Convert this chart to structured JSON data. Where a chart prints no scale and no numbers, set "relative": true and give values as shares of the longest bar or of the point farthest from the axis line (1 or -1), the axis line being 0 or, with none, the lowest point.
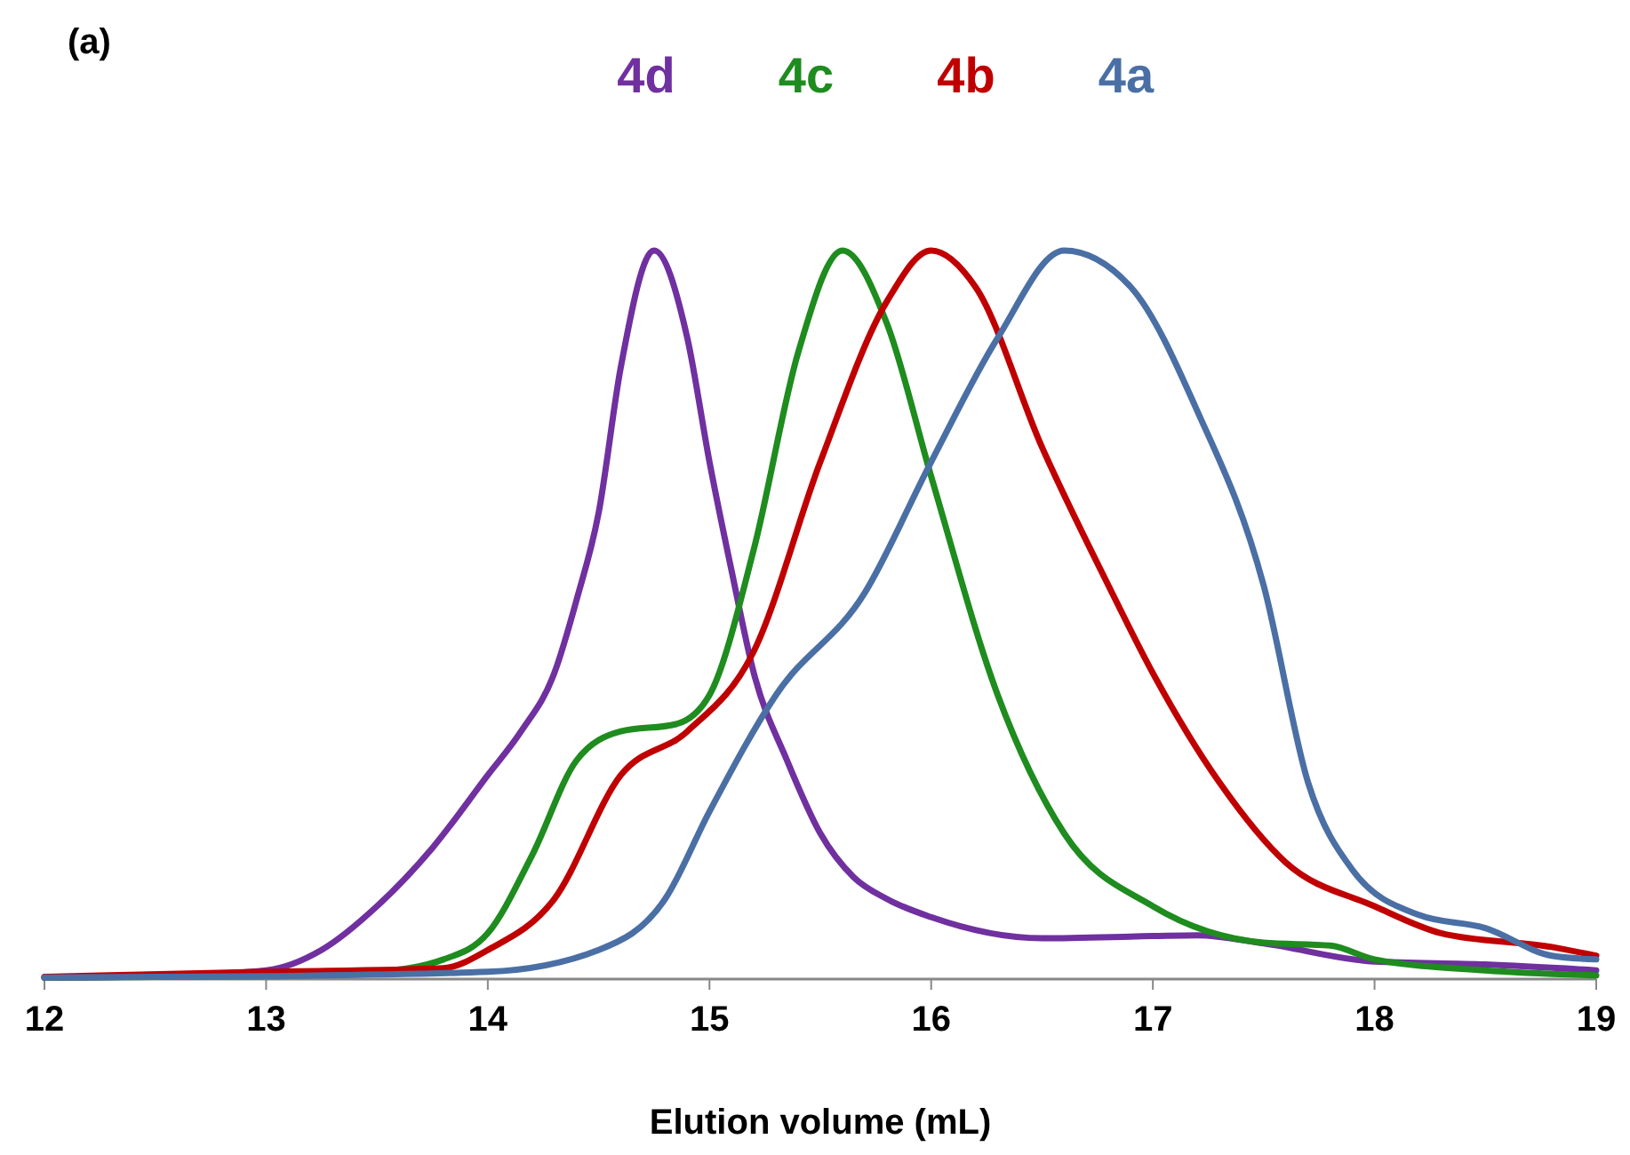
{
  "chart_data": {
    "type": "line",
    "relative": true,
    "xlabel": "Elution volume (mL)",
    "xlim": [
      12,
      19
    ],
    "xticks": [
      12,
      13,
      14,
      15,
      16,
      17,
      18,
      19
    ],
    "legend": "top",
    "grid": false,
    "marker": "none",
    "line_style": "solid",
    "annotations": [
      "(a)"
    ],
    "series": [
      {
        "name": "4d",
        "color": "#7030a0",
        "x": [
          12,
          12.5,
          13,
          13.25,
          13.5,
          13.75,
          14,
          14.15,
          14.3,
          14.4,
          14.5,
          14.6,
          14.75,
          14.9,
          15,
          15.1,
          15.2,
          15.35,
          15.5,
          15.65,
          15.8,
          16,
          16.5,
          17,
          17.2,
          17.5,
          18,
          18.5,
          19
        ],
        "values": [
          0.002,
          0.004,
          0.012,
          0.04,
          0.1,
          0.18,
          0.28,
          0.34,
          0.42,
          0.52,
          0.64,
          0.84,
          1,
          0.88,
          0.71,
          0.56,
          0.42,
          0.3,
          0.2,
          0.14,
          0.11,
          0.085,
          0.056,
          0.059,
          0.06,
          0.049,
          0.024,
          0.02,
          0.012
        ]
      },
      {
        "name": "4c",
        "color": "#1e8c1e",
        "x": [
          12,
          13,
          13.5,
          13.8,
          14,
          14.2,
          14.4,
          14.6,
          14.85,
          15,
          15.2,
          15.4,
          15.6,
          15.8,
          16,
          16.3,
          16.6,
          17,
          17.5,
          17.8,
          18,
          18.5,
          19
        ],
        "values": [
          0.002,
          0.004,
          0.01,
          0.027,
          0.063,
          0.17,
          0.3,
          0.34,
          0.35,
          0.39,
          0.59,
          0.86,
          1,
          0.9,
          0.69,
          0.39,
          0.2,
          0.1,
          0.05,
          0.046,
          0.027,
          0.012,
          0.005
        ]
      },
      {
        "name": "4b",
        "color": "#c00000",
        "x": [
          12,
          13,
          13.8,
          14,
          14.3,
          14.6,
          14.9,
          15.2,
          15.5,
          15.8,
          16,
          16.2,
          16.5,
          16.8,
          17,
          17.3,
          17.6,
          18,
          18.3,
          18.8,
          19
        ],
        "values": [
          0.003,
          0.01,
          0.015,
          0.04,
          0.11,
          0.28,
          0.34,
          0.45,
          0.71,
          0.93,
          1,
          0.95,
          0.73,
          0.54,
          0.42,
          0.27,
          0.16,
          0.1,
          0.063,
          0.044,
          0.032
        ]
      },
      {
        "name": "4a",
        "color": "#4a6fa5",
        "x": [
          12,
          13,
          14,
          14.5,
          14.8,
          15,
          15.3,
          15.7,
          16,
          16.3,
          16.6,
          16.9,
          17.2,
          17.5,
          17.7,
          17.9,
          18.2,
          18.5,
          18.8,
          19
        ],
        "values": [
          0.002,
          0.004,
          0.01,
          0.04,
          0.11,
          0.23,
          0.39,
          0.53,
          0.71,
          0.88,
          1,
          0.95,
          0.78,
          0.54,
          0.27,
          0.15,
          0.088,
          0.07,
          0.032,
          0.027
        ]
      }
    ]
  }
}
